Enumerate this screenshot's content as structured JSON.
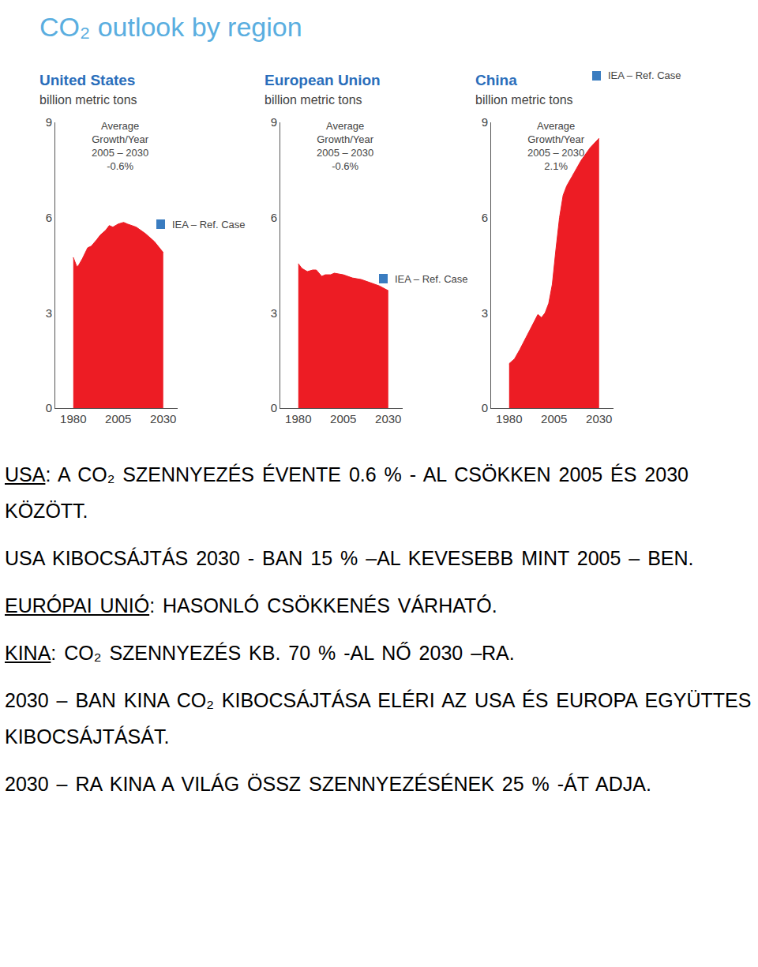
{
  "title": "CO₂ outlook by region",
  "chart_data": [
    {
      "type": "area",
      "title": "United States",
      "subtitle": "billion metric tons",
      "annotations": [
        "Average",
        "Growth/Year",
        "2005 – 2030",
        "-0.6%"
      ],
      "x": [
        1980,
        1981,
        1982,
        1983,
        1985,
        1988,
        1990,
        1993,
        1995,
        1998,
        2000,
        2002,
        2005,
        2008,
        2010,
        2015,
        2020,
        2025,
        2030
      ],
      "series": [
        {
          "name": "IEA – Ref. Case",
          "color": "#ed1c24",
          "values": [
            4.75,
            4.6,
            4.45,
            4.5,
            4.7,
            5.05,
            5.1,
            5.3,
            5.45,
            5.6,
            5.75,
            5.7,
            5.8,
            5.85,
            5.8,
            5.7,
            5.5,
            5.25,
            4.9
          ]
        }
      ],
      "xlim": [
        1970,
        2038
      ],
      "xticks": [
        1980,
        2005,
        2030
      ],
      "ylim": [
        0,
        9
      ],
      "yticks": [
        0,
        3,
        6,
        9
      ],
      "grid": false
    },
    {
      "type": "area",
      "title": "European Union",
      "subtitle": "billion metric tons",
      "annotations": [
        "Average",
        "Growth/Year",
        "2005 – 2030",
        "-0.6%"
      ],
      "x": [
        1980,
        1982,
        1985,
        1988,
        1990,
        1993,
        1995,
        1998,
        2000,
        2005,
        2010,
        2015,
        2020,
        2025,
        2030
      ],
      "series": [
        {
          "name": "IEA – Ref. Case",
          "color": "#ed1c24",
          "values": [
            4.55,
            4.4,
            4.3,
            4.35,
            4.35,
            4.15,
            4.2,
            4.2,
            4.25,
            4.2,
            4.1,
            4.05,
            3.95,
            3.85,
            3.7
          ]
        }
      ],
      "xlim": [
        1970,
        2038
      ],
      "xticks": [
        1980,
        2005,
        2030
      ],
      "ylim": [
        0,
        9
      ],
      "yticks": [
        0,
        3,
        6,
        9
      ],
      "grid": false
    },
    {
      "type": "area",
      "title": "China",
      "subtitle": "billion metric tons",
      "annotations": [
        "Average",
        "Growth/Year",
        "2005 – 2030",
        "2.1%"
      ],
      "x": [
        1980,
        1983,
        1986,
        1990,
        1994,
        1996,
        1998,
        2000,
        2002,
        2004,
        2006,
        2008,
        2010,
        2012,
        2015,
        2020,
        2025,
        2030
      ],
      "series": [
        {
          "name": "IEA – Ref. Case",
          "color": "#ed1c24",
          "values": [
            1.4,
            1.55,
            1.85,
            2.3,
            2.75,
            2.95,
            2.85,
            3.0,
            3.3,
            3.9,
            5.0,
            6.0,
            6.7,
            7.0,
            7.3,
            7.8,
            8.2,
            8.5
          ]
        }
      ],
      "xlim": [
        1970,
        2038
      ],
      "xticks": [
        1980,
        2005,
        2030
      ],
      "ylim": [
        0,
        9
      ],
      "yticks": [
        0,
        3,
        6,
        9
      ],
      "grid": false
    }
  ],
  "text": [
    {
      "lead": "USA",
      "text": ": A CO₂ SZENNYEZÉS ÉVENTE 0.6 % - AL CSÖKKEN 2005 ÉS 2030 KÖZÖTT."
    },
    {
      "text": "USA KIBOCSÁJTÁS 2030 - BAN 15 % –AL KEVESEBB MINT 2005 – BEN."
    },
    {
      "lead": "EURÓPAI UNIÓ",
      "text": ": HASONLÓ CSÖKKENÉS VÁRHATÓ."
    },
    {
      "lead": "KINA",
      "text": ": CO₂ SZENNYEZÉS KB. 70 % -AL NŐ 2030 –RA."
    },
    {
      "text": "2030 – BAN KINA CO₂ KIBOCSÁJTÁSA ELÉRI AZ USA ÉS EUROPA EGYÜTTES KIBOCSÁJTÁSÁT."
    },
    {
      "text": "2030 – RA KINA A VILÁG ÖSSZ SZENNYEZÉSÉNEK 25 % -ÁT ADJA."
    }
  ]
}
